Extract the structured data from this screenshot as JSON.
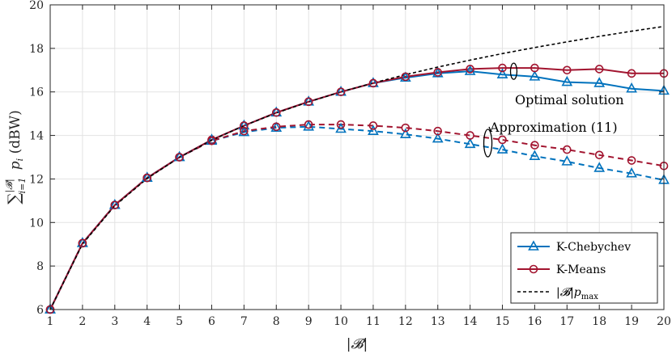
{
  "chart_data": {
    "type": "line",
    "xlabel": "|𝓑|",
    "ylabel_parts": {
      "sum": "∑",
      "sup": "|𝓑|",
      "sub": "i=1",
      "var": "p",
      "var_sub": "i",
      "unit": "(dBW)"
    },
    "x": [
      1,
      2,
      3,
      4,
      5,
      6,
      7,
      8,
      9,
      10,
      11,
      12,
      13,
      14,
      15,
      16,
      17,
      18,
      19,
      20
    ],
    "xlim": [
      1,
      20
    ],
    "ylim": [
      6,
      20
    ],
    "xticks": [
      "1",
      "2",
      "3",
      "4",
      "5",
      "6",
      "7",
      "8",
      "9",
      "10",
      "11",
      "12",
      "13",
      "14",
      "15",
      "16",
      "17",
      "18",
      "19",
      "20"
    ],
    "yticks": [
      "6",
      "8",
      "10",
      "12",
      "14",
      "16",
      "18",
      "20"
    ],
    "grid": true,
    "legend_position": "bottom-right",
    "series": [
      {
        "name": "K-Chebychev",
        "group": "optimal",
        "style": "solid",
        "marker": "triangle",
        "color": "#0072BD",
        "values": [
          6.0,
          9.05,
          10.8,
          12.05,
          13.0,
          13.8,
          14.45,
          15.05,
          15.55,
          16.0,
          16.4,
          16.65,
          16.85,
          16.95,
          16.8,
          16.7,
          16.45,
          16.4,
          16.15,
          16.05
        ]
      },
      {
        "name": "K-Means",
        "group": "optimal",
        "style": "solid",
        "marker": "circle",
        "color": "#A2142F",
        "values": [
          6.0,
          9.05,
          10.8,
          12.05,
          13.0,
          13.8,
          14.45,
          15.05,
          15.55,
          16.0,
          16.4,
          16.7,
          16.9,
          17.05,
          17.1,
          17.1,
          17.0,
          17.05,
          16.85,
          16.85
        ]
      },
      {
        "name": "K-Chebychev",
        "group": "approx",
        "style": "dashed",
        "marker": "triangle",
        "color": "#0072BD",
        "values": [
          6.0,
          9.05,
          10.8,
          12.05,
          13.0,
          13.75,
          14.15,
          14.35,
          14.4,
          14.3,
          14.2,
          14.05,
          13.85,
          13.6,
          13.35,
          13.05,
          12.8,
          12.5,
          12.25,
          11.95
        ]
      },
      {
        "name": "K-Means",
        "group": "approx",
        "style": "dashed",
        "marker": "circle",
        "color": "#A2142F",
        "values": [
          6.0,
          9.05,
          10.8,
          12.05,
          13.0,
          13.75,
          14.2,
          14.4,
          14.5,
          14.5,
          14.45,
          14.35,
          14.2,
          14.0,
          13.8,
          13.55,
          13.35,
          13.1,
          12.85,
          12.6
        ]
      },
      {
        "name": "|𝓑|p_max",
        "group": "bound",
        "style": "dotted-dash",
        "marker": "none",
        "color": "#000000",
        "values": [
          6.0,
          9.01,
          10.77,
          12.02,
          12.99,
          13.78,
          14.45,
          15.03,
          15.54,
          16.0,
          16.41,
          16.79,
          17.14,
          17.46,
          17.76,
          18.04,
          18.3,
          18.55,
          18.79,
          19.01
        ]
      }
    ],
    "legend": [
      {
        "label": "K-Chebychev",
        "color": "#0072BD",
        "marker": "triangle",
        "style": "solid"
      },
      {
        "label": "K-Means",
        "color": "#A2142F",
        "marker": "circle",
        "style": "solid"
      },
      {
        "label_main": "|𝓑|p",
        "label_sub": "max",
        "color": "#000000",
        "marker": "none",
        "style": "dashed"
      }
    ],
    "annotations": [
      {
        "text": "Optimal solution",
        "anchor_x": 15.35,
        "anchor_y": 16.95
      },
      {
        "text": "Approximation (11)",
        "anchor_x": 14.55,
        "anchor_y": 13.65
      }
    ]
  }
}
